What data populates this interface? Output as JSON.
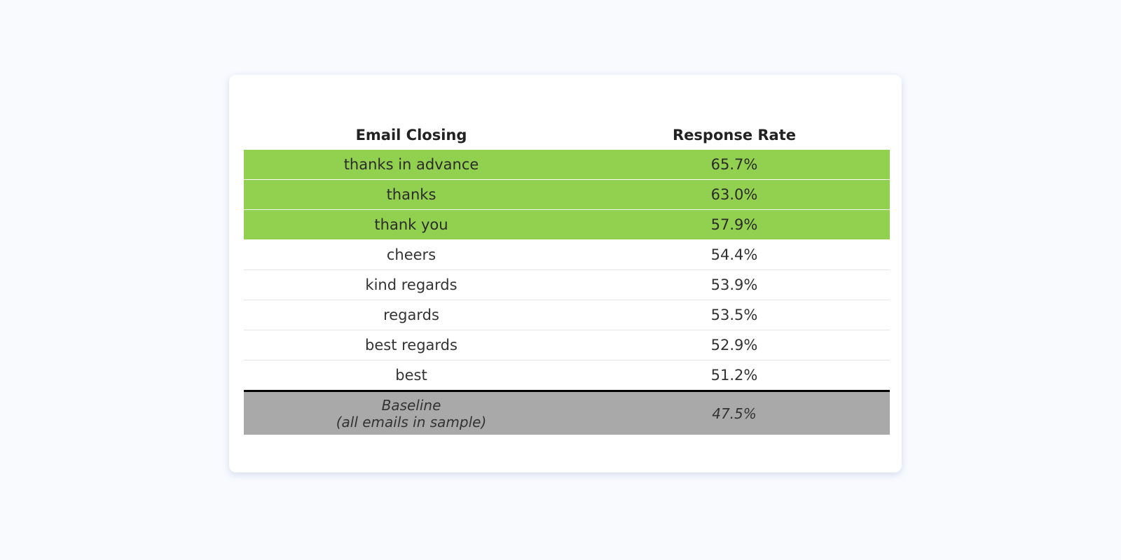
{
  "table": {
    "headers": {
      "closing": "Email Closing",
      "rate": "Response Rate"
    },
    "rows": [
      {
        "closing": "thanks in advance",
        "rate": "65.7%",
        "highlight": true
      },
      {
        "closing": "thanks",
        "rate": "63.0%",
        "highlight": true
      },
      {
        "closing": "thank you",
        "rate": "57.9%",
        "highlight": true
      },
      {
        "closing": "cheers",
        "rate": "54.4%",
        "highlight": false
      },
      {
        "closing": "kind regards",
        "rate": "53.9%",
        "highlight": false
      },
      {
        "closing": "regards",
        "rate": "53.5%",
        "highlight": false
      },
      {
        "closing": "best regards",
        "rate": "52.9%",
        "highlight": false
      },
      {
        "closing": "best",
        "rate": "51.2%",
        "highlight": false
      }
    ],
    "baseline": {
      "label_line1": "Baseline",
      "label_line2": "(all emails in sample)",
      "rate": "47.5%"
    }
  },
  "colors": {
    "highlight": "#92d050",
    "baseline": "#a9a9a9",
    "page_background": "#f8fafe",
    "card_background": "#ffffff"
  }
}
